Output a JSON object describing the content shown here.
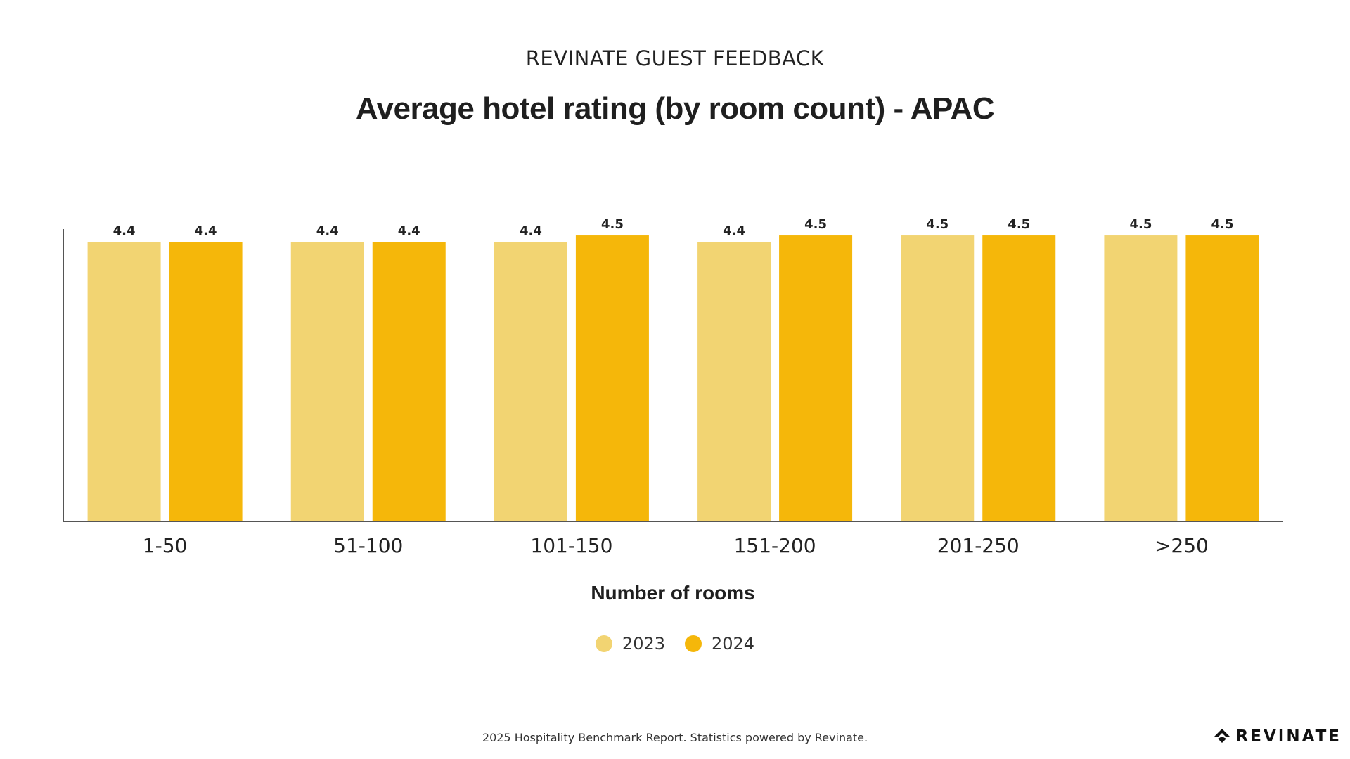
{
  "header": {
    "kicker": "REVINATE GUEST FEEDBACK",
    "title": "Average hotel rating (by room count) - APAC"
  },
  "chart_data": {
    "type": "bar",
    "categories": [
      "1-50",
      "51-100",
      "101-150",
      "151-200",
      "201-250",
      ">250"
    ],
    "series": [
      {
        "name": "2023",
        "values": [
          4.4,
          4.4,
          4.4,
          4.4,
          4.5,
          4.5
        ],
        "color": "#F2D472"
      },
      {
        "name": "2024",
        "values": [
          4.4,
          4.4,
          4.5,
          4.5,
          4.5,
          4.5
        ],
        "color": "#F5B70A"
      }
    ],
    "data_labels": [
      [
        "4.4",
        "4.4",
        "4.4",
        "4.4",
        "4.5",
        "4.5"
      ],
      [
        "4.4",
        "4.4",
        "4.5",
        "4.5",
        "4.5",
        "4.5"
      ]
    ],
    "xlabel": "Number of rooms",
    "ylabel": "",
    "ylim": [
      0,
      4.6
    ],
    "grid": false,
    "legend_position": "bottom-center"
  },
  "footer": {
    "note": "2025 Hospitality Benchmark Report. Statistics powered by Revinate."
  },
  "brand": {
    "name": "REVINATE",
    "icon": "revinate-logo-icon"
  }
}
